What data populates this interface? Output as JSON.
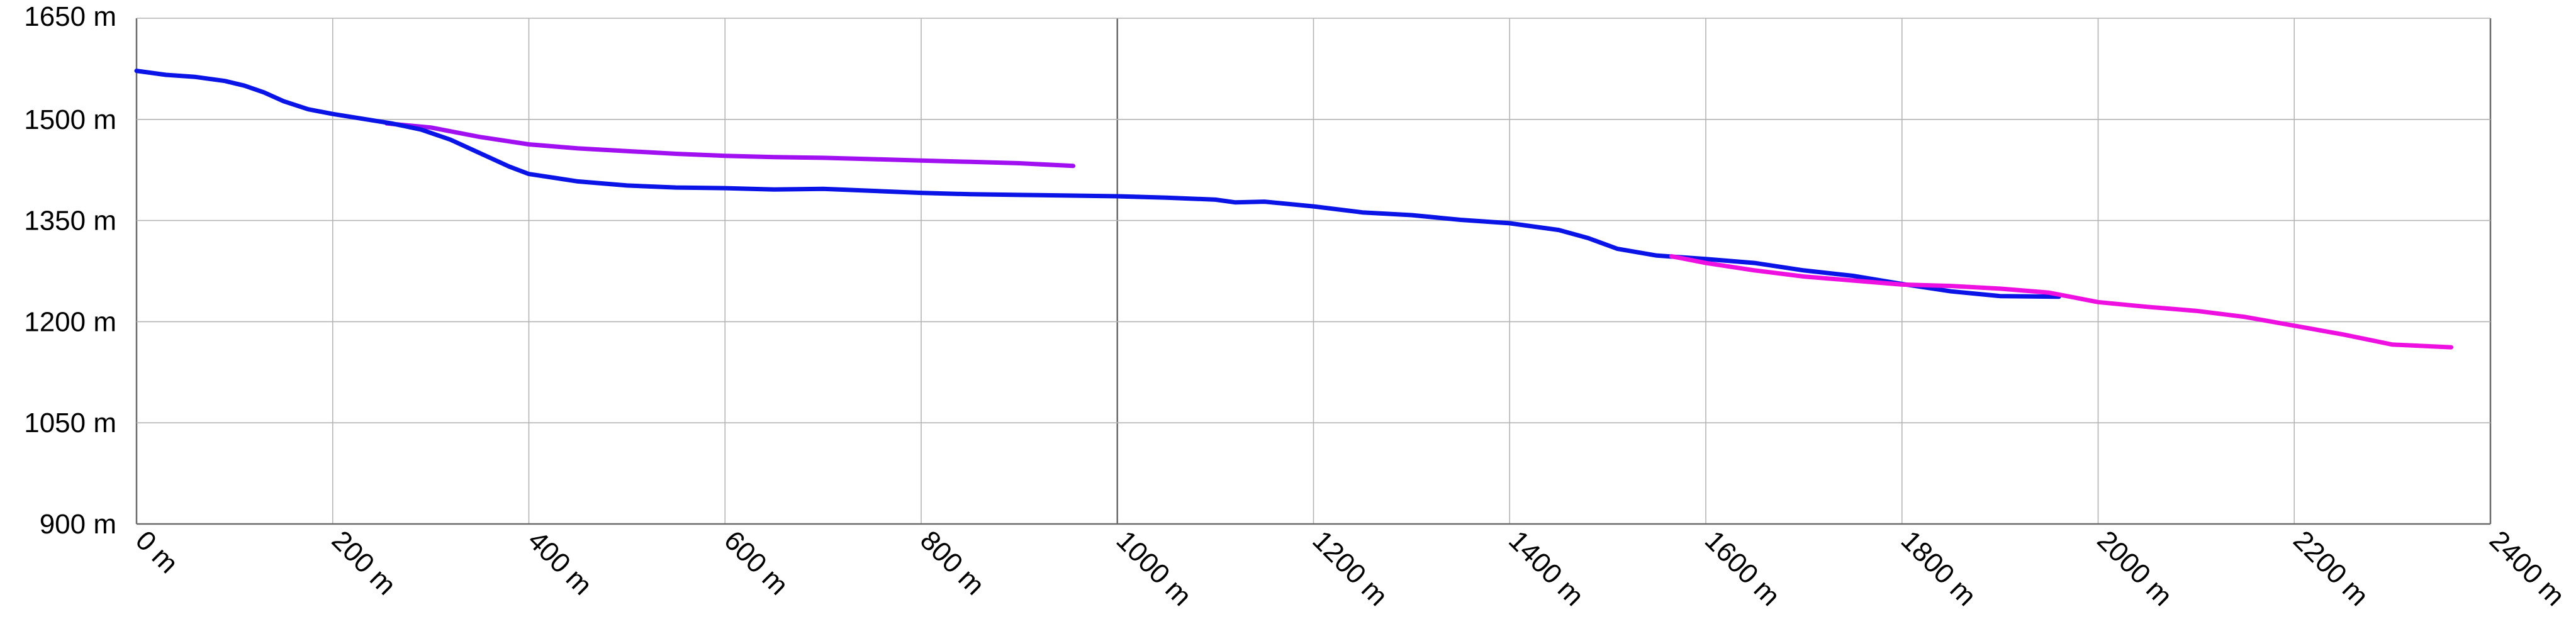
{
  "chart_data": {
    "type": "line",
    "xlim": [
      0,
      2400
    ],
    "ylim": [
      900,
      1650
    ],
    "x_ticks": [
      0,
      200,
      400,
      600,
      800,
      1000,
      1200,
      1400,
      1600,
      1800,
      2000,
      2200,
      2400
    ],
    "y_ticks": [
      900,
      1050,
      1200,
      1350,
      1500,
      1650
    ],
    "x_tick_labels": [
      "0 m",
      "200 m",
      "400 m",
      "600 m",
      "800 m",
      "1000 m",
      "1200 m",
      "1400 m",
      "1600 m",
      "1800 m",
      "2000 m",
      "2200 m",
      "2400 m"
    ],
    "y_tick_labels": [
      "900 m",
      "1050 m",
      "1200 m",
      "1350 m",
      "1500 m",
      "1650 m"
    ],
    "grid": true,
    "series": [
      {
        "color": "#a010f0",
        "points": [
          [
            255,
            1494
          ],
          [
            300,
            1488
          ],
          [
            350,
            1474
          ],
          [
            400,
            1463
          ],
          [
            450,
            1457
          ],
          [
            500,
            1453
          ],
          [
            550,
            1449
          ],
          [
            600,
            1446
          ],
          [
            650,
            1444
          ],
          [
            700,
            1443
          ],
          [
            750,
            1441
          ],
          [
            800,
            1439
          ],
          [
            850,
            1437
          ],
          [
            900,
            1435
          ],
          [
            955,
            1431
          ]
        ]
      },
      {
        "color": "#0a14e6",
        "points": [
          [
            0,
            1572
          ],
          [
            30,
            1566
          ],
          [
            60,
            1563
          ],
          [
            90,
            1557
          ],
          [
            110,
            1550
          ],
          [
            130,
            1540
          ],
          [
            150,
            1527
          ],
          [
            175,
            1515
          ],
          [
            200,
            1508
          ],
          [
            230,
            1501
          ],
          [
            260,
            1494
          ],
          [
            290,
            1485
          ],
          [
            320,
            1470
          ],
          [
            350,
            1450
          ],
          [
            380,
            1430
          ],
          [
            400,
            1419
          ],
          [
            450,
            1408
          ],
          [
            500,
            1402
          ],
          [
            550,
            1399
          ],
          [
            600,
            1398
          ],
          [
            650,
            1396
          ],
          [
            700,
            1397
          ],
          [
            750,
            1394
          ],
          [
            800,
            1391
          ],
          [
            850,
            1389
          ],
          [
            900,
            1388
          ],
          [
            950,
            1387
          ],
          [
            1000,
            1386
          ],
          [
            1050,
            1384
          ],
          [
            1100,
            1381
          ],
          [
            1120,
            1377
          ],
          [
            1150,
            1378
          ],
          [
            1200,
            1371
          ],
          [
            1250,
            1362
          ],
          [
            1300,
            1358
          ],
          [
            1350,
            1351
          ],
          [
            1400,
            1346
          ],
          [
            1450,
            1336
          ],
          [
            1480,
            1324
          ],
          [
            1510,
            1308
          ],
          [
            1550,
            1298
          ],
          [
            1600,
            1293
          ],
          [
            1650,
            1287
          ],
          [
            1700,
            1276
          ],
          [
            1750,
            1268
          ],
          [
            1800,
            1256
          ],
          [
            1850,
            1245
          ],
          [
            1900,
            1238
          ],
          [
            1960,
            1237
          ]
        ]
      },
      {
        "color": "#ee10e0",
        "points": [
          [
            1565,
            1297
          ],
          [
            1600,
            1287
          ],
          [
            1650,
            1276
          ],
          [
            1700,
            1267
          ],
          [
            1750,
            1261
          ],
          [
            1800,
            1255
          ],
          [
            1850,
            1253
          ],
          [
            1900,
            1249
          ],
          [
            1950,
            1243
          ],
          [
            2000,
            1229
          ],
          [
            2050,
            1222
          ],
          [
            2100,
            1216
          ],
          [
            2150,
            1207
          ],
          [
            2200,
            1194
          ],
          [
            2250,
            1181
          ],
          [
            2300,
            1166
          ],
          [
            2360,
            1162
          ]
        ]
      }
    ]
  }
}
